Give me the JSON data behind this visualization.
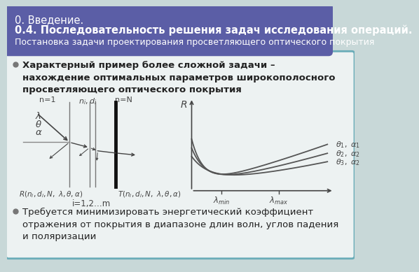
{
  "title_line1": "0. Введение.",
  "title_line2": "0.4. Последовательность решения задач исследования операций.",
  "title_line3": "Постановка задачи проектирования просветляющего оптического покрытия",
  "header_bg_color": "#5b5ea6",
  "header_text_color": "#ffffff",
  "border_color": "#6aacb8",
  "body_bg_color": "#edf2f2",
  "bullet1": "Характерный пример более сложной задачи –\nнахождение оптимальных параметров широкополосного\nпросветляющего оптического покрытия",
  "bullet2": "Требуется минимизировать энергетический коэффициент\nотражения от покрытия в диапазоне длин волн, углов падения\nи поляризации",
  "text_color": "#222222",
  "diagram_color": "#444444",
  "outer_bg": "#c8d8d8"
}
